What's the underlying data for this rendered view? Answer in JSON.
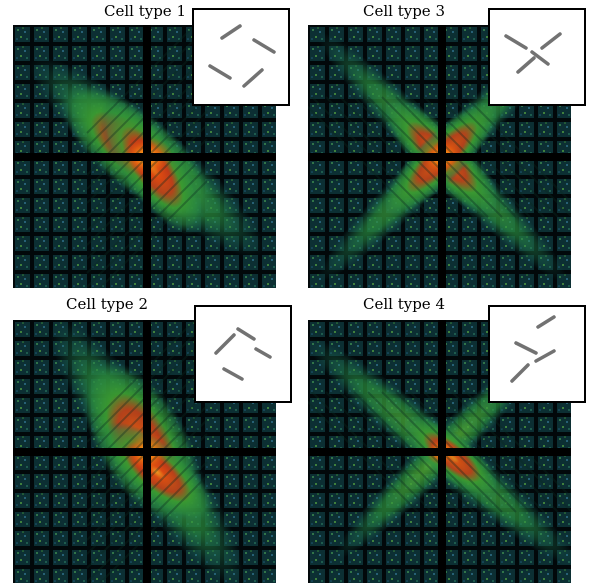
{
  "panels": [
    {
      "title": "Cell type 1"
    },
    {
      "title": "Cell type 3"
    },
    {
      "title": "Cell type 2"
    },
    {
      "title": "Cell type 4"
    }
  ]
}
